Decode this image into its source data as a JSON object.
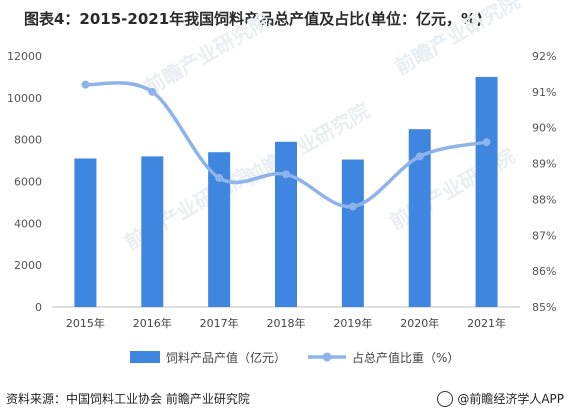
{
  "title": "图表4：2015-2021年我国饲料产品总产值及占比(单位：亿元，%)",
  "source": "资料来源：中国饲料工业协会 前瞻产业研究院",
  "brand": "@前瞻经济学人APP",
  "watermarks": [
    "前瞻产业研究院"
  ],
  "colors": {
    "bar": "#3f86e0",
    "line": "#8db3ea"
  },
  "chart_data": {
    "type": "bar",
    "categories": [
      "2015年",
      "2016年",
      "2017年",
      "2018年",
      "2019年",
      "2020年",
      "2021年"
    ],
    "series": [
      {
        "name": "饲料产品产值（亿元）",
        "type": "bar",
        "axis": "left",
        "values": [
          7100,
          7200,
          7400,
          7900,
          7050,
          8500,
          11000
        ]
      },
      {
        "name": "占总产值比重（%）",
        "type": "line",
        "axis": "right",
        "values": [
          91.2,
          91.0,
          88.6,
          88.7,
          87.8,
          89.2,
          89.6
        ]
      }
    ],
    "y_left": {
      "ylim": [
        0,
        12000
      ],
      "ticks": [
        "0",
        "2000",
        "4000",
        "6000",
        "8000",
        "10000",
        "12000"
      ]
    },
    "y_right": {
      "ylim": [
        85,
        92
      ],
      "ticks": [
        "85%",
        "86%",
        "87%",
        "88%",
        "89%",
        "90%",
        "91%",
        "92%"
      ]
    },
    "legend_position": "bottom",
    "grid": false
  }
}
